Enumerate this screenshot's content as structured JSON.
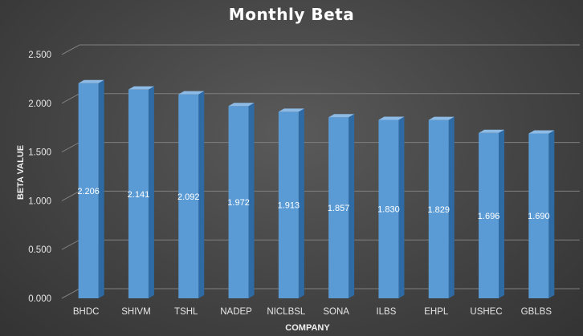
{
  "chart_data": {
    "type": "bar",
    "title": "Monthly Beta",
    "xlabel": "COMPANY",
    "ylabel": "BETA VALUE",
    "categories": [
      "BHDC",
      "SHIVM",
      "TSHL",
      "NADEP",
      "NICLBSL",
      "SONA",
      "ILBS",
      "EHPL",
      "USHEC",
      "GBLBS"
    ],
    "values": [
      2.206,
      2.141,
      2.092,
      1.972,
      1.913,
      1.857,
      1.83,
      1.829,
      1.696,
      1.69
    ],
    "data_labels": [
      "2.206",
      "2.141",
      "2.092",
      "1.972",
      "1.913",
      "1.857",
      "1.830",
      "1.829",
      "1.696",
      "1.690"
    ],
    "ylim": [
      0,
      2.5
    ],
    "yticks": [
      "0.000",
      "0.500",
      "1.000",
      "1.500",
      "2.000",
      "2.500"
    ],
    "grid": true,
    "legend": "none",
    "style": "3d-column",
    "colors": {
      "bar_front": "#5b9bd5",
      "bar_top": "#8dbbe6",
      "bar_side": "#2e6aa3",
      "grid": "#7f7f7f",
      "background": "#404040"
    }
  }
}
